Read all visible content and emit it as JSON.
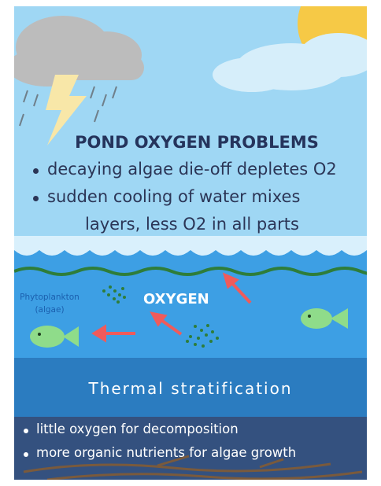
{
  "header": {
    "title": "POND OXYGEN PROBLEMS",
    "bullets": [
      {
        "lines": [
          "decaying algae die-off depletes O2"
        ]
      },
      {
        "lines": [
          "sudden cooling of water mixes",
          "layers, less O2 in all parts"
        ]
      }
    ]
  },
  "water": {
    "phytoplankton": [
      "Phytoplankton",
      "(algae)"
    ],
    "oxygen": "OXYGEN"
  },
  "stratification": {
    "title": "Thermal stratification",
    "bullets": [
      "little oxygen for decomposition",
      "more organic nutrients for algae growth"
    ]
  }
}
